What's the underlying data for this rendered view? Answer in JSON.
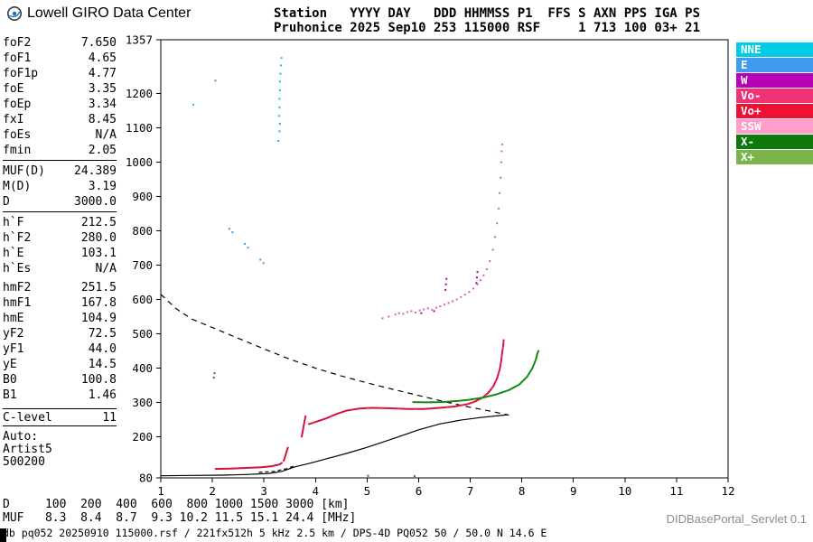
{
  "brand": {
    "title": "Lowell GIRO Data Center"
  },
  "header": {
    "line1": "Station   YYYY DAY   DDD HHMMSS P1  FFS S AXN PPS IGA PS",
    "line2": "Pruhonice 2025 Sep10 253 115000 RSF     1 713 100 03+ 21"
  },
  "panel": {
    "groups": [
      {
        "divider_after": true,
        "rows": [
          {
            "label": "foF2",
            "value": "7.650"
          },
          {
            "label": "foF1",
            "value": "4.65"
          },
          {
            "label": "foF1p",
            "value": "4.77"
          },
          {
            "label": "foE",
            "value": "3.35"
          },
          {
            "label": "foEp",
            "value": "3.34"
          },
          {
            "label": "fxI",
            "value": "8.45"
          },
          {
            "label": "foEs",
            "value": "N/A"
          },
          {
            "label": "fmin",
            "value": "2.05"
          }
        ]
      },
      {
        "divider_after": true,
        "rows": [
          {
            "label": "MUF(D)",
            "value": "24.389"
          },
          {
            "label": "M(D)",
            "value": "3.19"
          },
          {
            "label": "D",
            "value": "3000.0"
          }
        ]
      },
      {
        "divider_after": false,
        "rows": [
          {
            "label": "h`F",
            "value": "212.5"
          },
          {
            "label": "h`F2",
            "value": "280.0"
          },
          {
            "label": "h`E",
            "value": "103.1"
          },
          {
            "label": "h`Es",
            "value": "N/A"
          }
        ]
      },
      {
        "divider_after": false,
        "rows": [
          {
            "label": "hmF2",
            "value": "251.5"
          },
          {
            "label": "hmF1",
            "value": "167.8"
          },
          {
            "label": "hmE",
            "value": "104.9"
          },
          {
            "label": "yF2",
            "value": "72.5"
          },
          {
            "label": "yF1",
            "value": "44.0"
          },
          {
            "label": "yE",
            "value": "14.5"
          },
          {
            "label": "B0",
            "value": "100.8"
          },
          {
            "label": "B1",
            "value": "1.46"
          }
        ]
      }
    ],
    "c_level": {
      "label": "C-level",
      "value": "11"
    },
    "auto_lines": [
      "Auto:",
      "Artist5",
      "500200"
    ]
  },
  "legend": {
    "items": [
      {
        "label": "NNE",
        "color": "#00CCE8"
      },
      {
        "label": "E",
        "color": "#3E9BF0"
      },
      {
        "label": "W",
        "color": "#B800B8"
      },
      {
        "label": "Vo-",
        "color": "#EE3377"
      },
      {
        "label": "Vo+",
        "color": "#EE1133"
      },
      {
        "label": "SSW",
        "color": "#FF9EC8"
      },
      {
        "label": "X-",
        "color": "#0E7A0E"
      },
      {
        "label": "X+",
        "color": "#7CB34C"
      }
    ]
  },
  "footer": {
    "d_line": "D     100  200  400  600  800 1000 1500 3000 [km]",
    "muf_line": "MUF   8.3  8.4  8.7  9.3 10.2 11.5 15.1 24.4 [MHz]",
    "status_line": "db pq052 20250910 115000.rsf / 221fx512h 5 kHz 2.5 km / DPS-4D PQ052 50 / 50.0 N 14.6 E",
    "servlet_label": "DIDBasePortal_Servlet 0.1"
  },
  "chart_data": {
    "type": "scatter",
    "title": "",
    "xlabel": "[MHz]",
    "ylabel": "[km]",
    "xlim": [
      1,
      12
    ],
    "ylim": [
      80,
      1357
    ],
    "x_ticks": [
      1,
      2,
      3,
      4,
      5,
      6,
      7,
      8,
      9,
      10,
      11,
      12
    ],
    "y_ticks": [
      80,
      200,
      300,
      400,
      500,
      600,
      700,
      800,
      900,
      1000,
      1100,
      1200,
      1357
    ],
    "grid": false,
    "legend_position": "right",
    "series": [
      {
        "name": "muf-transmission-curve",
        "type": "line",
        "color": "#000000",
        "dash": "6 5",
        "width": 1.2,
        "points": [
          [
            1.0,
            615
          ],
          [
            1.3,
            573
          ],
          [
            1.6,
            543
          ],
          [
            2.0,
            518
          ],
          [
            2.5,
            487
          ],
          [
            3.0,
            456
          ],
          [
            3.5,
            426
          ],
          [
            4.0,
            400
          ],
          [
            4.5,
            377
          ],
          [
            5.0,
            357
          ],
          [
            5.5,
            338
          ],
          [
            6.0,
            320
          ],
          [
            6.5,
            302
          ],
          [
            7.0,
            286
          ],
          [
            7.4,
            274
          ],
          [
            7.75,
            263
          ]
        ]
      },
      {
        "name": "hf-baseline-curve",
        "type": "line",
        "color": "#000000",
        "width": 1.2,
        "points": [
          [
            1.0,
            86
          ],
          [
            1.6,
            87
          ],
          [
            2.2,
            88
          ],
          [
            2.7,
            90
          ],
          [
            3.1,
            93
          ],
          [
            3.35,
            99
          ],
          [
            3.6,
            112
          ],
          [
            3.9,
            123
          ],
          [
            4.2,
            135
          ],
          [
            4.6,
            151
          ],
          [
            5.0,
            169
          ],
          [
            5.5,
            194
          ],
          [
            6.0,
            220
          ],
          [
            6.4,
            237
          ],
          [
            6.8,
            248
          ],
          [
            7.2,
            256
          ],
          [
            7.6,
            262
          ],
          [
            7.72,
            264
          ]
        ]
      },
      {
        "name": "e-layer-dashed-segment",
        "type": "line",
        "color": "#000000",
        "dash": "4 3",
        "width": 1.2,
        "points": [
          [
            2.9,
            96
          ],
          [
            3.2,
            99
          ],
          [
            3.45,
            107
          ],
          [
            3.6,
            115
          ]
        ]
      },
      {
        "name": "o-trace-e-region",
        "type": "line",
        "color": "#D8103C",
        "width": 2,
        "points": [
          [
            2.05,
            106
          ],
          [
            2.35,
            107
          ],
          [
            2.65,
            109
          ],
          [
            2.95,
            111
          ],
          [
            3.15,
            114
          ],
          [
            3.3,
            119
          ],
          [
            3.36,
            125
          ]
        ]
      },
      {
        "name": "o-trace-f-cusp",
        "type": "line",
        "color": "#D8103C",
        "width": 2,
        "points": [
          [
            3.38,
            128
          ],
          [
            3.41,
            142
          ],
          [
            3.44,
            157
          ],
          [
            3.47,
            170
          ]
        ]
      },
      {
        "name": "o-trace-spread-cluster",
        "type": "line",
        "color": "#D8103C",
        "width": 2,
        "points": [
          [
            3.73,
            198
          ],
          [
            3.75,
            214
          ],
          [
            3.77,
            231
          ],
          [
            3.79,
            247
          ],
          [
            3.81,
            262
          ]
        ]
      },
      {
        "name": "o-trace-f-region",
        "type": "line",
        "color": "#D8103C",
        "width": 2,
        "points": [
          [
            3.86,
            236
          ],
          [
            4.0,
            243
          ],
          [
            4.2,
            253
          ],
          [
            4.4,
            266
          ],
          [
            4.6,
            276
          ],
          [
            4.85,
            282
          ],
          [
            5.1,
            284
          ],
          [
            5.4,
            283
          ],
          [
            5.8,
            281
          ],
          [
            6.1,
            281
          ],
          [
            6.4,
            284
          ],
          [
            6.7,
            288
          ],
          [
            6.95,
            295
          ],
          [
            7.1,
            303
          ],
          [
            7.25,
            315
          ],
          [
            7.35,
            328
          ],
          [
            7.45,
            347
          ],
          [
            7.52,
            370
          ],
          [
            7.57,
            395
          ],
          [
            7.6,
            420
          ],
          [
            7.62,
            444
          ],
          [
            7.64,
            466
          ],
          [
            7.65,
            484
          ]
        ]
      },
      {
        "name": "o-trace-doppler-overlay",
        "type": "scatter",
        "color": "#E8367D",
        "points": [
          [
            3.95,
            240
          ],
          [
            4.3,
            260
          ],
          [
            4.7,
            279
          ],
          [
            5.0,
            284
          ],
          [
            5.3,
            283
          ],
          [
            5.6,
            282
          ],
          [
            5.95,
            281
          ],
          [
            6.25,
            283
          ],
          [
            6.55,
            286
          ],
          [
            6.85,
            292
          ],
          [
            7.05,
            300
          ],
          [
            7.2,
            310
          ],
          [
            7.3,
            322
          ],
          [
            7.42,
            342
          ],
          [
            7.5,
            362
          ],
          [
            7.55,
            386
          ],
          [
            7.59,
            412
          ],
          [
            7.61,
            436
          ],
          [
            7.63,
            458
          ],
          [
            7.645,
            476
          ]
        ]
      },
      {
        "name": "x-trace",
        "type": "line",
        "color": "#128A12",
        "width": 2,
        "points": [
          [
            5.88,
            301
          ],
          [
            6.15,
            300
          ],
          [
            6.45,
            301
          ],
          [
            6.75,
            304
          ],
          [
            7.0,
            308
          ],
          [
            7.25,
            314
          ],
          [
            7.5,
            323
          ],
          [
            7.75,
            336
          ],
          [
            7.95,
            352
          ],
          [
            8.1,
            374
          ],
          [
            8.2,
            398
          ],
          [
            8.27,
            424
          ],
          [
            8.31,
            446
          ],
          [
            8.33,
            452
          ]
        ]
      },
      {
        "name": "second-order-f-trace",
        "type": "scatter",
        "color": "#E060A8",
        "points": [
          [
            5.3,
            545
          ],
          [
            5.42,
            550
          ],
          [
            5.55,
            556
          ],
          [
            5.62,
            560
          ],
          [
            5.7,
            558
          ],
          [
            5.78,
            563
          ],
          [
            5.86,
            566
          ],
          [
            5.94,
            562
          ],
          [
            6.02,
            568
          ],
          [
            6.1,
            571
          ],
          [
            6.18,
            574
          ],
          [
            6.26,
            570
          ],
          [
            6.34,
            576
          ],
          [
            6.42,
            580
          ],
          [
            6.5,
            585
          ],
          [
            6.58,
            590
          ],
          [
            6.66,
            595
          ],
          [
            6.74,
            600
          ],
          [
            6.82,
            607
          ],
          [
            6.9,
            614
          ],
          [
            6.98,
            622
          ],
          [
            7.06,
            632
          ],
          [
            7.14,
            644
          ],
          [
            7.2,
            656
          ],
          [
            7.26,
            670
          ],
          [
            7.32,
            688
          ],
          [
            7.38,
            712
          ],
          [
            7.44,
            745
          ],
          [
            7.48,
            782
          ],
          [
            7.52,
            822
          ],
          [
            7.55,
            865
          ],
          [
            7.57,
            910
          ],
          [
            7.59,
            955
          ],
          [
            7.6,
            1000
          ],
          [
            7.61,
            1032
          ],
          [
            7.62,
            1052
          ]
        ]
      },
      {
        "name": "w-echo-strings",
        "type": "scatter",
        "color": "#AA00AA",
        "points": [
          [
            6.52,
            628
          ],
          [
            6.53,
            644
          ],
          [
            6.54,
            660
          ],
          [
            7.12,
            648
          ],
          [
            7.13,
            664
          ],
          [
            7.14,
            680
          ],
          [
            6.05,
            560
          ],
          [
            6.3,
            566
          ]
        ]
      },
      {
        "name": "nne-echo-column",
        "type": "scatter",
        "color": "#00C8E8",
        "points": [
          [
            3.29,
            1135
          ],
          [
            3.3,
            1160
          ],
          [
            3.3,
            1185
          ],
          [
            3.31,
            1210
          ],
          [
            3.31,
            1235
          ],
          [
            3.32,
            1258
          ],
          [
            3.33,
            1282
          ],
          [
            3.34,
            1304
          ],
          [
            1.63,
            1168
          ]
        ]
      },
      {
        "name": "e-echo-specks",
        "type": "scatter",
        "color": "#3E9BF0",
        "points": [
          [
            3.28,
            1062
          ],
          [
            3.3,
            1090
          ],
          [
            3.31,
            1112
          ],
          [
            2.33,
            806
          ],
          [
            2.39,
            796
          ],
          [
            2.63,
            762
          ],
          [
            2.69,
            751
          ],
          [
            2.93,
            716
          ],
          [
            2.99,
            706
          ],
          [
            2.06,
            1238
          ]
        ]
      },
      {
        "name": "noise-specks",
        "type": "scatter",
        "color": "#128A12",
        "points": [
          [
            5.02,
            86
          ],
          [
            5.92,
            85
          ],
          [
            2.03,
            372
          ],
          [
            2.04,
            385
          ]
        ]
      }
    ]
  }
}
